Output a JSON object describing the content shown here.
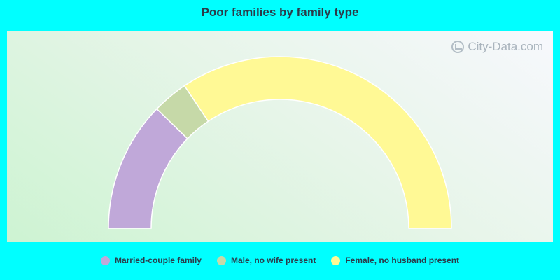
{
  "chart_data": {
    "type": "pie",
    "title": "Poor families by family type",
    "style": "semi-donut",
    "categories": [
      "Married-couple family",
      "Male, no wife present",
      "Female, no husband present"
    ],
    "values": [
      24.5,
      6.7,
      68.8
    ],
    "colors": [
      "#c0a8d9",
      "#c6d9a8",
      "#fff995"
    ],
    "legend_position": "bottom"
  },
  "watermark": "City-Data.com"
}
